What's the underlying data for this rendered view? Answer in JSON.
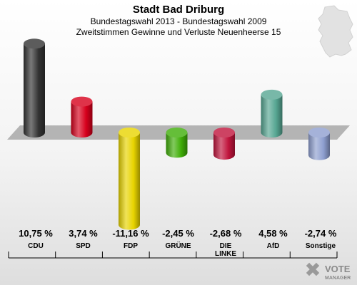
{
  "title": "Stadt Bad Driburg",
  "subtitle1": "Bundestagswahl 2013 - Bundestagswahl 2009",
  "subtitle2": "Zweitstimmen Gewinne und Verluste Neuenheerse 15",
  "brand": {
    "line1": "VOTE",
    "line2": "MANAGER",
    "icon": "vote-check-icon"
  },
  "chart_data": {
    "type": "bar",
    "title": "Stadt Bad Driburg",
    "categories": [
      "CDU",
      "SPD",
      "FDP",
      "GRÜNE",
      "DIE LINKE",
      "AfD",
      "Sonstige"
    ],
    "category_lines": [
      [
        "CDU"
      ],
      [
        "SPD"
      ],
      [
        "FDP"
      ],
      [
        "GRÜNE"
      ],
      [
        "DIE",
        "LINKE"
      ],
      [
        "AfD"
      ],
      [
        "Sonstige"
      ]
    ],
    "values": [
      10.75,
      3.74,
      -11.16,
      -2.45,
      -2.68,
      4.58,
      -2.74
    ],
    "labels": [
      "10,75 %",
      "3,74 %",
      "-11,16 %",
      "-2,45 %",
      "-2,68 %",
      "4,58 %",
      "-2,74 %"
    ],
    "colors": [
      "#333333",
      "#d7001c",
      "#e8d400",
      "#3fae07",
      "#c0143c",
      "#56a692",
      "#8e9fd0"
    ],
    "ylim": [
      -11.16,
      10.75
    ],
    "baseline_zero": true
  }
}
